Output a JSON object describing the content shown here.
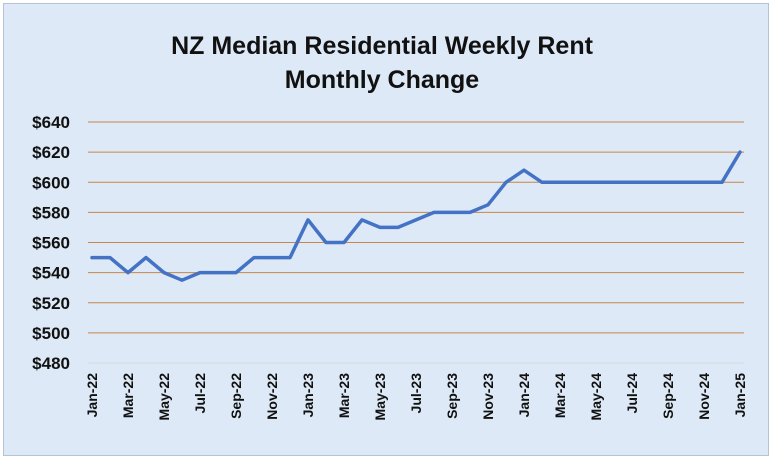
{
  "chart_data": {
    "type": "line",
    "title_lines": [
      "NZ Median Residential Weekly Rent",
      "Monthly Change"
    ],
    "xlabel": "",
    "ylabel": "",
    "ylim": [
      480,
      640
    ],
    "y_ticks": [
      480,
      500,
      520,
      540,
      560,
      580,
      600,
      620,
      640
    ],
    "y_tick_labels": [
      "$480",
      "$500",
      "$520",
      "$540",
      "$560",
      "$580",
      "$600",
      "$620",
      "$640"
    ],
    "x_tick_labels": [
      "Jan-22",
      "Mar-22",
      "May-22",
      "Jul-22",
      "Sep-22",
      "Nov-22",
      "Jan-23",
      "Mar-23",
      "May-23",
      "Jul-23",
      "Sep-23",
      "Nov-23",
      "Jan-24",
      "Mar-24",
      "May-24",
      "Jul-24",
      "Sep-24",
      "Nov-24",
      "Jan-25"
    ],
    "categories": [
      "Jan-22",
      "Feb-22",
      "Mar-22",
      "Apr-22",
      "May-22",
      "Jun-22",
      "Jul-22",
      "Aug-22",
      "Sep-22",
      "Oct-22",
      "Nov-22",
      "Dec-22",
      "Jan-23",
      "Feb-23",
      "Mar-23",
      "Apr-23",
      "May-23",
      "Jun-23",
      "Jul-23",
      "Aug-23",
      "Sep-23",
      "Oct-23",
      "Nov-23",
      "Dec-23",
      "Jan-24",
      "Feb-24",
      "Mar-24",
      "Apr-24",
      "May-24",
      "Jun-24",
      "Jul-24",
      "Aug-24",
      "Sep-24",
      "Oct-24",
      "Nov-24",
      "Dec-24",
      "Jan-25"
    ],
    "series": [
      {
        "values": [
          550,
          550,
          540,
          550,
          540,
          535,
          540,
          540,
          540,
          550,
          550,
          550,
          575,
          560,
          560,
          575,
          570,
          570,
          575,
          580,
          580,
          580,
          585,
          600,
          608,
          600,
          600,
          600,
          600,
          600,
          600,
          600,
          600,
          600,
          600,
          600,
          620
        ],
        "color": "#4472c4"
      }
    ],
    "grid": true,
    "grid_color": "#c8854b",
    "legend": "none"
  }
}
